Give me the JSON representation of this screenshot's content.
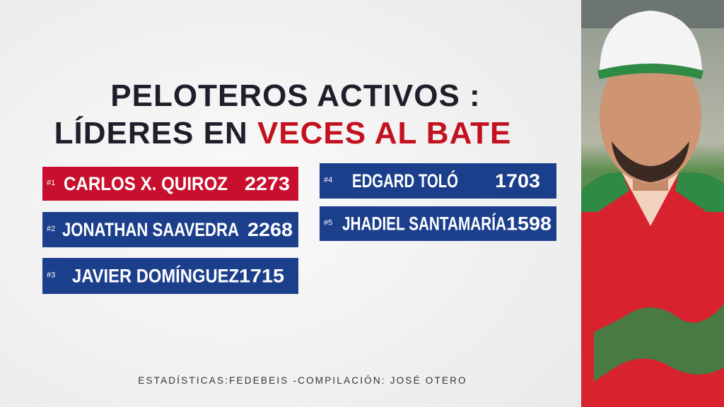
{
  "title": {
    "line1": "PELOTEROS ACTIVOS :",
    "line2_prefix": "LÍDERES EN ",
    "line2_highlight": "VECES AL BATE"
  },
  "leaders": [
    {
      "rank": "#1",
      "name": "CARLOS X. QUIROZ",
      "value": 2273
    },
    {
      "rank": "#2",
      "name": "JONATHAN SAAVEDRA",
      "value": 2268
    },
    {
      "rank": "#3",
      "name": "JAVIER DOMÍNGUEZ",
      "value": 1715
    },
    {
      "rank": "#4",
      "name": "EDGARD TOLÓ",
      "value": 1703
    },
    {
      "rank": "#5",
      "name": "JHADIEL SANTAMARÍA",
      "value": 1598
    }
  ],
  "footer": "ESTADÍSTICAS:FEDEBEIS -COMPILACIÓN: JOSÉ OTERO"
}
